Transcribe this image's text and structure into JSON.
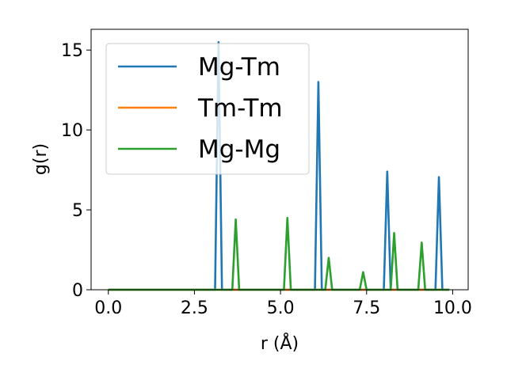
{
  "chart_data": {
    "type": "line",
    "xlabel": "r (Å)",
    "ylabel": "g(r)",
    "xlim": [
      -0.5,
      10.45
    ],
    "ylim": [
      0,
      16.3
    ],
    "xticks": [
      0.0,
      2.5,
      5.0,
      7.5,
      10.0
    ],
    "xtick_labels": [
      "0.0",
      "2.5",
      "5.0",
      "7.5",
      "10.0"
    ],
    "yticks": [
      0,
      5,
      10,
      15
    ],
    "ytick_labels": [
      "0",
      "5",
      "10",
      "15"
    ],
    "grid": false,
    "legend_position": "top-left",
    "series": [
      {
        "name": "Mg-Tm",
        "color": "#1f77b4",
        "x": [
          0.0,
          3.1,
          3.2,
          3.3,
          6.0,
          6.1,
          6.2,
          8.0,
          8.1,
          8.2,
          9.5,
          9.6,
          9.7,
          9.9
        ],
        "y": [
          0,
          0,
          15.5,
          0,
          0,
          13.0,
          0,
          0,
          7.4,
          0,
          0,
          7.05,
          0,
          0
        ]
      },
      {
        "name": "Tm-Tm",
        "color": "#ff7f0e",
        "x": [
          0.0,
          9.9
        ],
        "y": [
          0,
          0
        ]
      },
      {
        "name": "Mg-Mg",
        "color": "#2ca02c",
        "x": [
          0.0,
          3.6,
          3.7,
          3.8,
          5.1,
          5.2,
          5.3,
          6.3,
          6.4,
          6.5,
          7.3,
          7.4,
          7.5,
          8.2,
          8.3,
          8.4,
          9.0,
          9.1,
          9.2,
          9.9
        ],
        "y": [
          0,
          0,
          4.4,
          0,
          0,
          4.5,
          0,
          0,
          2.0,
          0,
          0,
          1.1,
          0,
          0,
          3.55,
          0,
          0,
          2.95,
          0,
          0
        ]
      }
    ]
  }
}
